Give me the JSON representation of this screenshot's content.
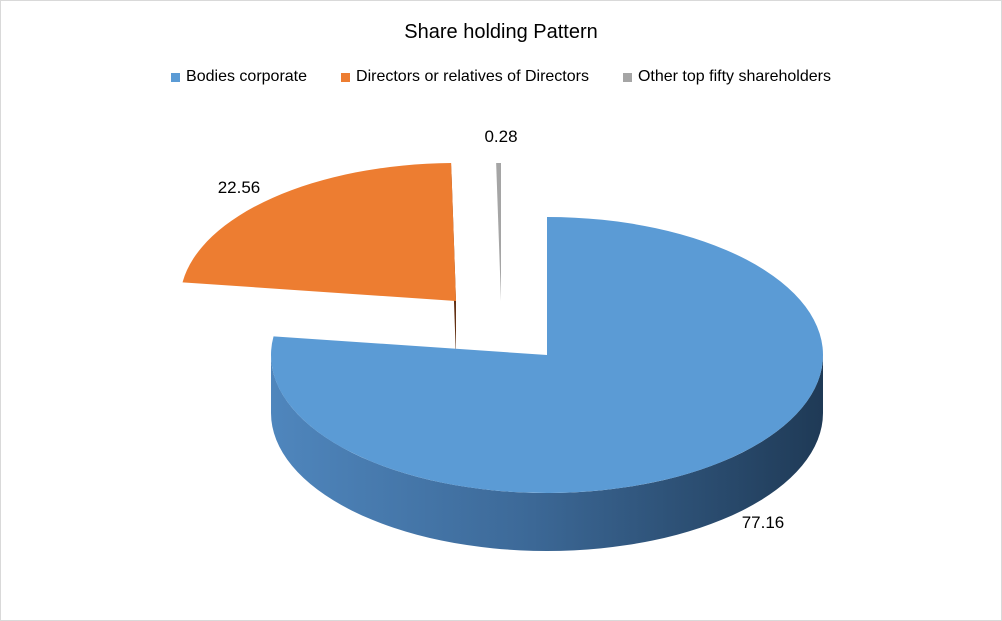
{
  "chart_data": {
    "type": "pie",
    "title": "Share holding Pattern",
    "legend_position": "top",
    "three_d": true,
    "exploded": true,
    "slices": [
      {
        "name": "Bodies corporate",
        "value": 77.16,
        "label": "77.16",
        "color": "#5b9bd5"
      },
      {
        "name": "Directors or relatives of Directors",
        "value": 22.56,
        "label": "22.56",
        "color": "#ed7d31"
      },
      {
        "name": "Other top fifty shareholders",
        "value": 0.28,
        "label": "0.28",
        "color": "#a5a5a5"
      }
    ]
  }
}
